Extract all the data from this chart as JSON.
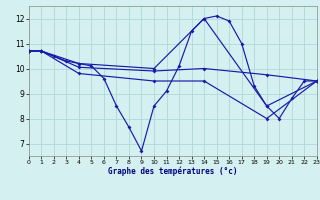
{
  "xlabel": "Graphe des températures (°c)",
  "background_color": "#d4f0f0",
  "grid_color": "#b0d8d8",
  "line_color": "#1a1aaa",
  "xlim": [
    0,
    23
  ],
  "ylim": [
    6.5,
    12.5
  ],
  "xticks": [
    0,
    1,
    2,
    3,
    4,
    5,
    6,
    7,
    8,
    9,
    10,
    11,
    12,
    13,
    14,
    15,
    16,
    17,
    18,
    19,
    20,
    21,
    22,
    23
  ],
  "yticks": [
    7,
    8,
    9,
    10,
    11,
    12
  ],
  "curve_main_x": [
    0,
    1,
    2,
    3,
    4,
    5,
    6,
    7,
    8,
    9,
    10,
    11,
    12,
    13,
    14,
    15,
    16,
    17,
    18,
    19,
    20,
    21,
    22,
    23
  ],
  "curve_main_y": [
    10.7,
    10.7,
    10.5,
    10.3,
    10.2,
    10.1,
    9.6,
    8.5,
    7.65,
    6.7,
    8.5,
    9.1,
    10.1,
    11.5,
    12.0,
    12.1,
    11.9,
    11.0,
    9.3,
    8.5,
    8.0,
    8.8,
    9.5,
    9.5
  ],
  "curve2_x": [
    0,
    1,
    4,
    10,
    14,
    19,
    23
  ],
  "curve2_y": [
    10.7,
    10.7,
    10.2,
    10.0,
    12.0,
    8.5,
    9.5
  ],
  "curve3_x": [
    0,
    1,
    4,
    10,
    14,
    19,
    23
  ],
  "curve3_y": [
    10.7,
    10.7,
    10.05,
    9.9,
    10.0,
    9.75,
    9.5
  ],
  "curve4_x": [
    0,
    1,
    4,
    10,
    14,
    19,
    23
  ],
  "curve4_y": [
    10.7,
    10.7,
    9.8,
    9.5,
    9.5,
    8.0,
    9.5
  ]
}
